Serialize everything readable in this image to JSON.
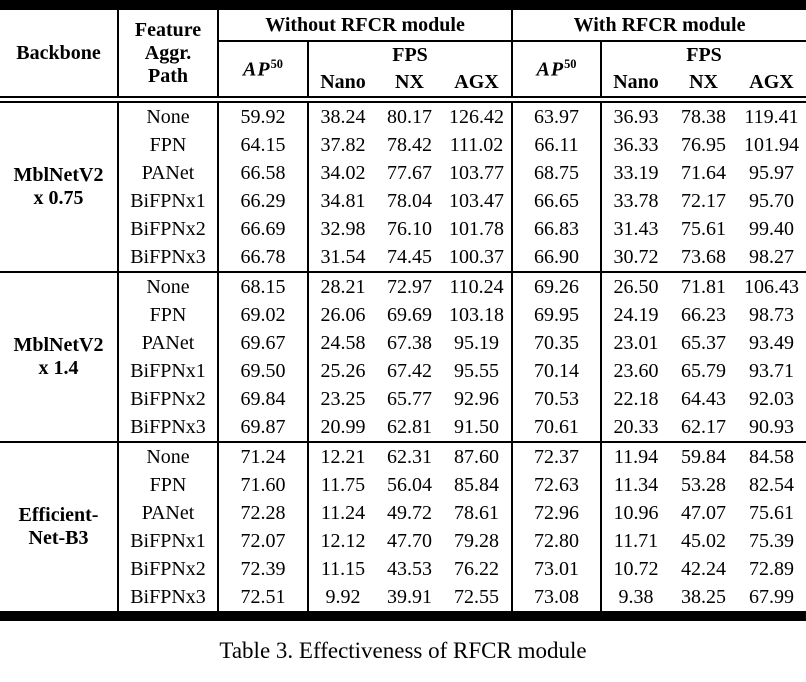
{
  "header": {
    "backbone": "Backbone",
    "feature_lines": [
      "Feature",
      "Aggr.",
      "Path"
    ],
    "group_without": "Without RFCR module",
    "group_with": "With RFCR module",
    "ap_label": "AP",
    "ap_sup": "50",
    "fps": "FPS",
    "devices": [
      "Nano",
      "NX",
      "AGX"
    ]
  },
  "blocks": [
    {
      "backbone_lines": [
        "MblNetV2",
        "x 0.75"
      ],
      "rows": [
        {
          "path": "None",
          "without": {
            "ap50": "59.92",
            "fps": [
              "38.24",
              "80.17",
              "126.42"
            ]
          },
          "with": {
            "ap50": "63.97",
            "fps": [
              "36.93",
              "78.38",
              "119.41"
            ]
          }
        },
        {
          "path": "FPN",
          "without": {
            "ap50": "64.15",
            "fps": [
              "37.82",
              "78.42",
              "111.02"
            ]
          },
          "with": {
            "ap50": "66.11",
            "fps": [
              "36.33",
              "76.95",
              "101.94"
            ]
          }
        },
        {
          "path": "PANet",
          "without": {
            "ap50": "66.58",
            "fps": [
              "34.02",
              "77.67",
              "103.77"
            ]
          },
          "with": {
            "ap50": "68.75",
            "fps": [
              "33.19",
              "71.64",
              "95.97"
            ]
          }
        },
        {
          "path": "BiFPNx1",
          "without": {
            "ap50": "66.29",
            "fps": [
              "34.81",
              "78.04",
              "103.47"
            ]
          },
          "with": {
            "ap50": "66.65",
            "fps": [
              "33.78",
              "72.17",
              "95.70"
            ]
          }
        },
        {
          "path": "BiFPNx2",
          "without": {
            "ap50": "66.69",
            "fps": [
              "32.98",
              "76.10",
              "101.78"
            ]
          },
          "with": {
            "ap50": "66.83",
            "fps": [
              "31.43",
              "75.61",
              "99.40"
            ]
          }
        },
        {
          "path": "BiFPNx3",
          "without": {
            "ap50": "66.78",
            "fps": [
              "31.54",
              "74.45",
              "100.37"
            ]
          },
          "with": {
            "ap50": "66.90",
            "fps": [
              "30.72",
              "73.68",
              "98.27"
            ]
          }
        }
      ]
    },
    {
      "backbone_lines": [
        "MblNetV2",
        "x 1.4"
      ],
      "rows": [
        {
          "path": "None",
          "without": {
            "ap50": "68.15",
            "fps": [
              "28.21",
              "72.97",
              "110.24"
            ]
          },
          "with": {
            "ap50": "69.26",
            "fps": [
              "26.50",
              "71.81",
              "106.43"
            ]
          }
        },
        {
          "path": "FPN",
          "without": {
            "ap50": "69.02",
            "fps": [
              "26.06",
              "69.69",
              "103.18"
            ]
          },
          "with": {
            "ap50": "69.95",
            "fps": [
              "24.19",
              "66.23",
              "98.73"
            ]
          }
        },
        {
          "path": "PANet",
          "without": {
            "ap50": "69.67",
            "fps": [
              "24.58",
              "67.38",
              "95.19"
            ]
          },
          "with": {
            "ap50": "70.35",
            "fps": [
              "23.01",
              "65.37",
              "93.49"
            ]
          }
        },
        {
          "path": "BiFPNx1",
          "without": {
            "ap50": "69.50",
            "fps": [
              "25.26",
              "67.42",
              "95.55"
            ]
          },
          "with": {
            "ap50": "70.14",
            "fps": [
              "23.60",
              "65.79",
              "93.71"
            ]
          }
        },
        {
          "path": "BiFPNx2",
          "without": {
            "ap50": "69.84",
            "fps": [
              "23.25",
              "65.77",
              "92.96"
            ]
          },
          "with": {
            "ap50": "70.53",
            "fps": [
              "22.18",
              "64.43",
              "92.03"
            ]
          }
        },
        {
          "path": "BiFPNx3",
          "without": {
            "ap50": "69.87",
            "fps": [
              "20.99",
              "62.81",
              "91.50"
            ]
          },
          "with": {
            "ap50": "70.61",
            "fps": [
              "20.33",
              "62.17",
              "90.93"
            ]
          }
        }
      ]
    },
    {
      "backbone_lines": [
        "Efficient-",
        "Net-B3"
      ],
      "rows": [
        {
          "path": "None",
          "without": {
            "ap50": "71.24",
            "fps": [
              "12.21",
              "62.31",
              "87.60"
            ]
          },
          "with": {
            "ap50": "72.37",
            "fps": [
              "11.94",
              "59.84",
              "84.58"
            ]
          }
        },
        {
          "path": "FPN",
          "without": {
            "ap50": "71.60",
            "fps": [
              "11.75",
              "56.04",
              "85.84"
            ]
          },
          "with": {
            "ap50": "72.63",
            "fps": [
              "11.34",
              "53.28",
              "82.54"
            ]
          }
        },
        {
          "path": "PANet",
          "without": {
            "ap50": "72.28",
            "fps": [
              "11.24",
              "49.72",
              "78.61"
            ]
          },
          "with": {
            "ap50": "72.96",
            "fps": [
              "10.96",
              "47.07",
              "75.61"
            ]
          }
        },
        {
          "path": "BiFPNx1",
          "without": {
            "ap50": "72.07",
            "fps": [
              "12.12",
              "47.70",
              "79.28"
            ]
          },
          "with": {
            "ap50": "72.80",
            "fps": [
              "11.71",
              "45.02",
              "75.39"
            ]
          }
        },
        {
          "path": "BiFPNx2",
          "without": {
            "ap50": "72.39",
            "fps": [
              "11.15",
              "43.53",
              "76.22"
            ]
          },
          "with": {
            "ap50": "73.01",
            "fps": [
              "10.72",
              "42.24",
              "72.89"
            ]
          }
        },
        {
          "path": "BiFPNx3",
          "without": {
            "ap50": "72.51",
            "fps": [
              "9.92",
              "39.91",
              "72.55"
            ]
          },
          "with": {
            "ap50": "73.08",
            "fps": [
              "9.38",
              "38.25",
              "67.99"
            ]
          }
        }
      ]
    }
  ],
  "caption": "Table 3. Effectiveness of RFCR module",
  "colors": {
    "text": "#000000",
    "background": "#ffffff",
    "rule": "#000000"
  }
}
